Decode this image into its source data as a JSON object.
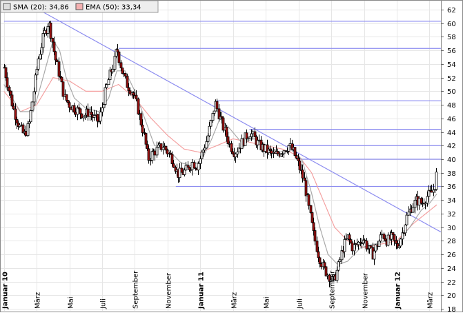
{
  "chart_data": {
    "type": "candlestick",
    "legend": [
      {
        "label": "SMA (20): 34,86",
        "color": "#888888"
      },
      {
        "label": "EMA (50): 33,34",
        "color": "#f4a0a0"
      }
    ],
    "ylim": [
      18,
      62
    ],
    "y_ticks": [
      "18",
      "20",
      "22",
      "24",
      "26",
      "28",
      "30",
      "32",
      "34",
      "36",
      "38",
      "40",
      "42",
      "44",
      "46",
      "48",
      "50",
      "52",
      "54",
      "56",
      "58",
      "60",
      "62"
    ],
    "x_labels": [
      {
        "label": "Januar 10",
        "pos": 0.0,
        "bold": true
      },
      {
        "label": "März",
        "pos": 2.0
      },
      {
        "label": "Mai",
        "pos": 4.0
      },
      {
        "label": "Juli",
        "pos": 6.0
      },
      {
        "label": "September",
        "pos": 8.0
      },
      {
        "label": "November",
        "pos": 10.0
      },
      {
        "label": "Januar 11",
        "pos": 12.0,
        "bold": true
      },
      {
        "label": "März",
        "pos": 14.0
      },
      {
        "label": "Mai",
        "pos": 16.0
      },
      {
        "label": "Juli",
        "pos": 18.0
      },
      {
        "label": "September",
        "pos": 20.0
      },
      {
        "label": "November",
        "pos": 22.0
      },
      {
        "label": "Januar 12",
        "pos": 24.0,
        "bold": true
      },
      {
        "label": "März",
        "pos": 26.0
      }
    ],
    "x_range": [
      -0.2,
      26.7
    ],
    "price_path": [
      [
        0,
        53.5
      ],
      [
        0.3,
        50
      ],
      [
        0.6,
        47
      ],
      [
        0.9,
        45
      ],
      [
        1.2,
        43.5
      ],
      [
        1.5,
        45
      ],
      [
        1.8,
        50
      ],
      [
        2.1,
        55
      ],
      [
        2.4,
        58
      ],
      [
        2.7,
        60.3
      ],
      [
        2.9,
        58
      ],
      [
        3.1,
        55
      ],
      [
        3.4,
        52
      ],
      [
        3.7,
        49
      ],
      [
        4.0,
        48
      ],
      [
        4.3,
        47.5
      ],
      [
        4.6,
        47
      ],
      [
        4.9,
        46.5
      ],
      [
        5.2,
        47
      ],
      [
        5.5,
        46
      ],
      [
        5.8,
        45.5
      ],
      [
        6.1,
        49
      ],
      [
        6.4,
        52
      ],
      [
        6.7,
        54
      ],
      [
        6.9,
        56.3
      ],
      [
        7.2,
        53
      ],
      [
        7.5,
        51
      ],
      [
        7.8,
        50
      ],
      [
        8.1,
        48
      ],
      [
        8.3,
        46
      ],
      [
        8.5,
        44
      ],
      [
        8.8,
        40
      ],
      [
        9.1,
        41
      ],
      [
        9.4,
        41.5
      ],
      [
        9.7,
        42
      ],
      [
        10.0,
        41
      ],
      [
        10.3,
        40
      ],
      [
        10.6,
        37.8
      ],
      [
        10.9,
        38
      ],
      [
        11.2,
        38.5
      ],
      [
        11.5,
        39.5
      ],
      [
        11.8,
        39
      ],
      [
        12.1,
        41
      ],
      [
        12.4,
        43
      ],
      [
        12.7,
        46
      ],
      [
        12.9,
        48.3
      ],
      [
        13.2,
        46
      ],
      [
        13.5,
        44
      ],
      [
        13.8,
        42
      ],
      [
        14.1,
        41
      ],
      [
        14.4,
        42
      ],
      [
        14.7,
        43
      ],
      [
        15.0,
        44
      ],
      [
        15.3,
        43
      ],
      [
        15.6,
        42
      ],
      [
        15.9,
        41.5
      ],
      [
        16.2,
        41
      ],
      [
        16.5,
        40.5
      ],
      [
        16.8,
        41
      ],
      [
        17.1,
        41.5
      ],
      [
        17.4,
        42
      ],
      [
        17.7,
        41
      ],
      [
        18.0,
        39
      ],
      [
        18.3,
        37
      ],
      [
        18.6,
        33
      ],
      [
        18.9,
        29
      ],
      [
        19.2,
        26
      ],
      [
        19.5,
        24
      ],
      [
        19.8,
        23
      ],
      [
        20.1,
        22
      ],
      [
        20.4,
        24
      ],
      [
        20.7,
        27
      ],
      [
        21.0,
        28.5
      ],
      [
        21.3,
        27
      ],
      [
        21.6,
        27.5
      ],
      [
        21.9,
        28.5
      ],
      [
        22.2,
        27
      ],
      [
        22.5,
        26
      ],
      [
        22.8,
        27.5
      ],
      [
        23.1,
        29
      ],
      [
        23.4,
        28
      ],
      [
        23.7,
        28.5
      ],
      [
        24.0,
        27
      ],
      [
        24.3,
        29
      ],
      [
        24.6,
        31.5
      ],
      [
        24.9,
        33
      ],
      [
        25.2,
        34
      ],
      [
        25.5,
        33.5
      ],
      [
        25.8,
        34.5
      ],
      [
        26.1,
        35
      ],
      [
        26.3,
        36
      ],
      [
        26.45,
        38.3
      ]
    ],
    "sma_path": [
      [
        0,
        51
      ],
      [
        1.0,
        47
      ],
      [
        1.8,
        47
      ],
      [
        2.5,
        53
      ],
      [
        3.0,
        57.5
      ],
      [
        3.4,
        56
      ],
      [
        3.8,
        52
      ],
      [
        4.3,
        49
      ],
      [
        5.0,
        47.5
      ],
      [
        5.8,
        47
      ],
      [
        6.4,
        49
      ],
      [
        6.9,
        53
      ],
      [
        7.4,
        53
      ],
      [
        8.0,
        50
      ],
      [
        8.6,
        46
      ],
      [
        9.2,
        42
      ],
      [
        10.0,
        41.5
      ],
      [
        10.8,
        39.5
      ],
      [
        11.5,
        39
      ],
      [
        12.1,
        40
      ],
      [
        12.7,
        43
      ],
      [
        13.2,
        46
      ],
      [
        13.8,
        44.5
      ],
      [
        14.5,
        42.5
      ],
      [
        15.3,
        43
      ],
      [
        16.0,
        42
      ],
      [
        16.8,
        41
      ],
      [
        17.5,
        41.5
      ],
      [
        18.2,
        40
      ],
      [
        18.8,
        35
      ],
      [
        19.3,
        30
      ],
      [
        19.8,
        26
      ],
      [
        20.4,
        24.5
      ],
      [
        21.0,
        25
      ],
      [
        21.8,
        27
      ],
      [
        22.6,
        27.5
      ],
      [
        23.4,
        28
      ],
      [
        24.1,
        28
      ],
      [
        24.8,
        30
      ],
      [
        25.5,
        32.5
      ],
      [
        26.0,
        33.5
      ],
      [
        26.45,
        34.9
      ]
    ],
    "ema_path": [
      [
        0,
        50
      ],
      [
        1.0,
        47
      ],
      [
        2.0,
        48
      ],
      [
        3.0,
        52
      ],
      [
        4.0,
        51.5
      ],
      [
        5.0,
        50
      ],
      [
        6.0,
        50
      ],
      [
        7.0,
        51
      ],
      [
        8.0,
        49
      ],
      [
        9.0,
        46
      ],
      [
        10.0,
        43.5
      ],
      [
        11.0,
        41.5
      ],
      [
        12.0,
        41
      ],
      [
        13.0,
        42
      ],
      [
        14.0,
        43
      ],
      [
        15.0,
        42.5
      ],
      [
        16.0,
        42
      ],
      [
        17.0,
        41.5
      ],
      [
        18.0,
        40.5
      ],
      [
        18.8,
        38
      ],
      [
        19.5,
        34
      ],
      [
        20.2,
        30
      ],
      [
        21.0,
        28
      ],
      [
        22.0,
        27
      ],
      [
        23.0,
        27.5
      ],
      [
        24.0,
        28
      ],
      [
        25.0,
        30.5
      ],
      [
        26.45,
        33.3
      ]
    ],
    "h_levels": [
      {
        "y": 60.3,
        "x_start": 0.0
      },
      {
        "y": 56.3,
        "x_start": 7.0
      },
      {
        "y": 48.6,
        "x_start": 13.0
      },
      {
        "y": 44.4,
        "x_start": 15.0
      },
      {
        "y": 42.0,
        "x_start": 17.3
      },
      {
        "y": 40.0,
        "x_start": 18.0
      },
      {
        "y": 36.0,
        "x_start": 10.5
      }
    ],
    "trendline": {
      "x1": 2.2,
      "y1": 61.9,
      "x2": 26.7,
      "y2": 29.3
    }
  }
}
